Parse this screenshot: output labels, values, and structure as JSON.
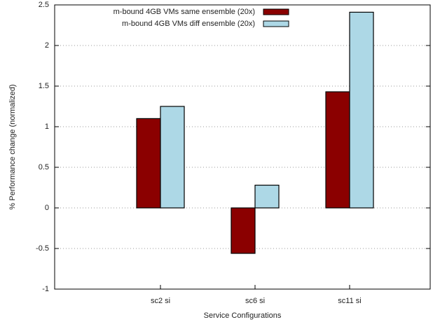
{
  "chart_data": {
    "type": "bar",
    "xlabel": "Service Configurations",
    "ylabel": "% Performance change (normalized)",
    "categories": [
      "sc2 si",
      "sc6 si",
      "sc11 si"
    ],
    "series": [
      {
        "name": "m-bound 4GB VMs same ensemble (20x)",
        "color": "#8b0000",
        "values": [
          1.1,
          -0.56,
          1.43
        ]
      },
      {
        "name": "m-bound 4GB VMs diff ensemble (20x)",
        "color": "#add8e6",
        "values": [
          1.25,
          0.28,
          2.41
        ]
      }
    ],
    "ylim": [
      -1,
      2.5
    ],
    "yticks": [
      -1,
      -0.5,
      0,
      0.5,
      1,
      1.5,
      2,
      2.5
    ],
    "grid": true,
    "legend": "top"
  }
}
